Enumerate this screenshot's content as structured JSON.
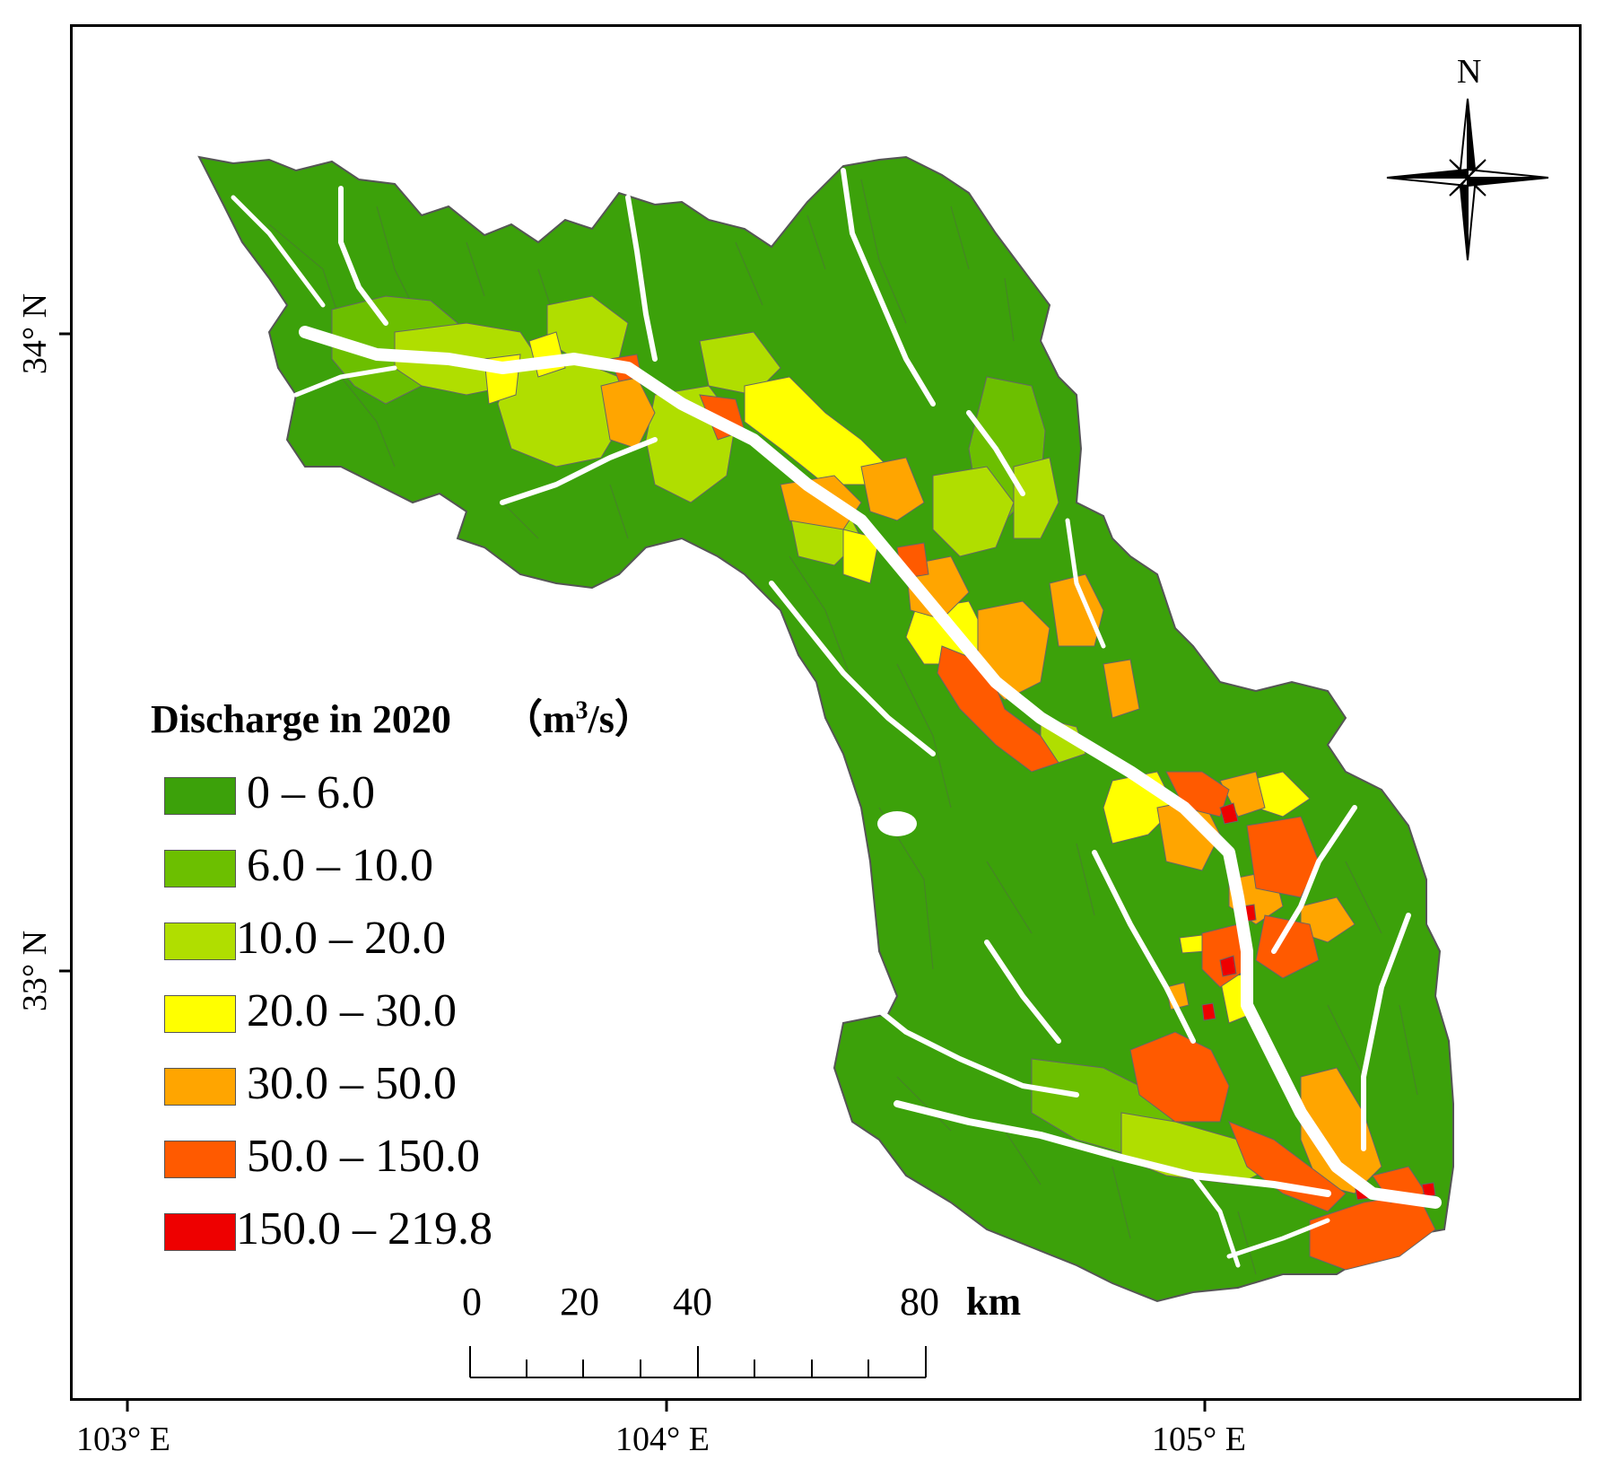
{
  "legend": {
    "title": "Discharge in 2020",
    "unit": "（m³/s）",
    "classes": [
      {
        "label": "0 – 6.0",
        "color": "#3ca10a"
      },
      {
        "label": "6.0 – 10.0",
        "color": "#6cbf00"
      },
      {
        "label": "10.0 – 20.0",
        "color": "#b0de00"
      },
      {
        "label": "20.0 – 30.0",
        "color": "#ffff00"
      },
      {
        "label": "30.0 – 50.0",
        "color": "#ffa500"
      },
      {
        "label": "50.0 – 150.0",
        "color": "#ff5a00"
      },
      {
        "label": "150.0 – 219.8",
        "color": "#ee0000"
      }
    ]
  },
  "axes": {
    "lon_labels": [
      "103° E",
      "104° E",
      "105° E"
    ],
    "lat_labels": [
      "34° N",
      "33° N"
    ]
  },
  "north_arrow": {
    "label": "N"
  },
  "scale_bar": {
    "ticks": [
      "0",
      "20",
      "40",
      "80"
    ],
    "unit": "km"
  },
  "colors": {
    "river_gap": "#ffffff",
    "boundary": "#555555",
    "frame": "#000000"
  }
}
